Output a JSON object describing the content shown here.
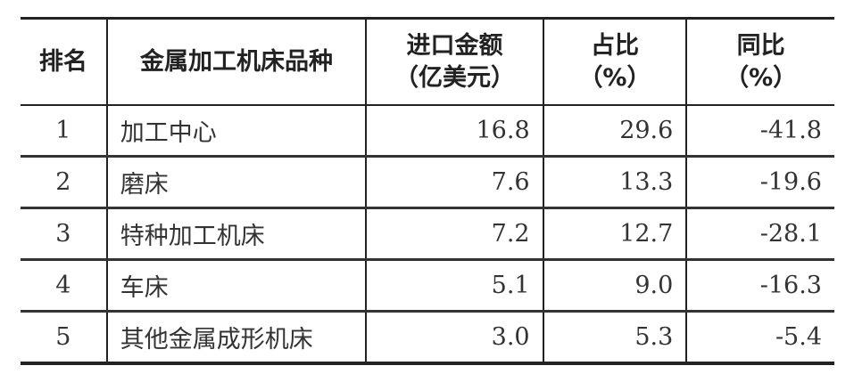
{
  "table": {
    "headers": [
      {
        "line1": "排名",
        "line2": ""
      },
      {
        "line1": "金属加工机床品种",
        "line2": ""
      },
      {
        "line1": "进口金额",
        "line2": "（亿美元）"
      },
      {
        "line1": "占比",
        "line2": "（%）"
      },
      {
        "line1": "同比",
        "line2": "（%）"
      }
    ],
    "rows": [
      {
        "rank": "1",
        "type": "加工中心",
        "amount": "16.8",
        "share": "29.6",
        "yoy": "-41.8"
      },
      {
        "rank": "2",
        "type": "磨床",
        "amount": "7.6",
        "share": "13.3",
        "yoy": "-19.6"
      },
      {
        "rank": "3",
        "type": "特种加工机床",
        "amount": "7.2",
        "share": "12.7",
        "yoy": "-28.1"
      },
      {
        "rank": "4",
        "type": "车床",
        "amount": "5.1",
        "share": "9.0",
        "yoy": "-16.3"
      },
      {
        "rank": "5",
        "type": "其他金属成形机床",
        "amount": "3.0",
        "share": "5.3",
        "yoy": "-5.4"
      }
    ]
  }
}
